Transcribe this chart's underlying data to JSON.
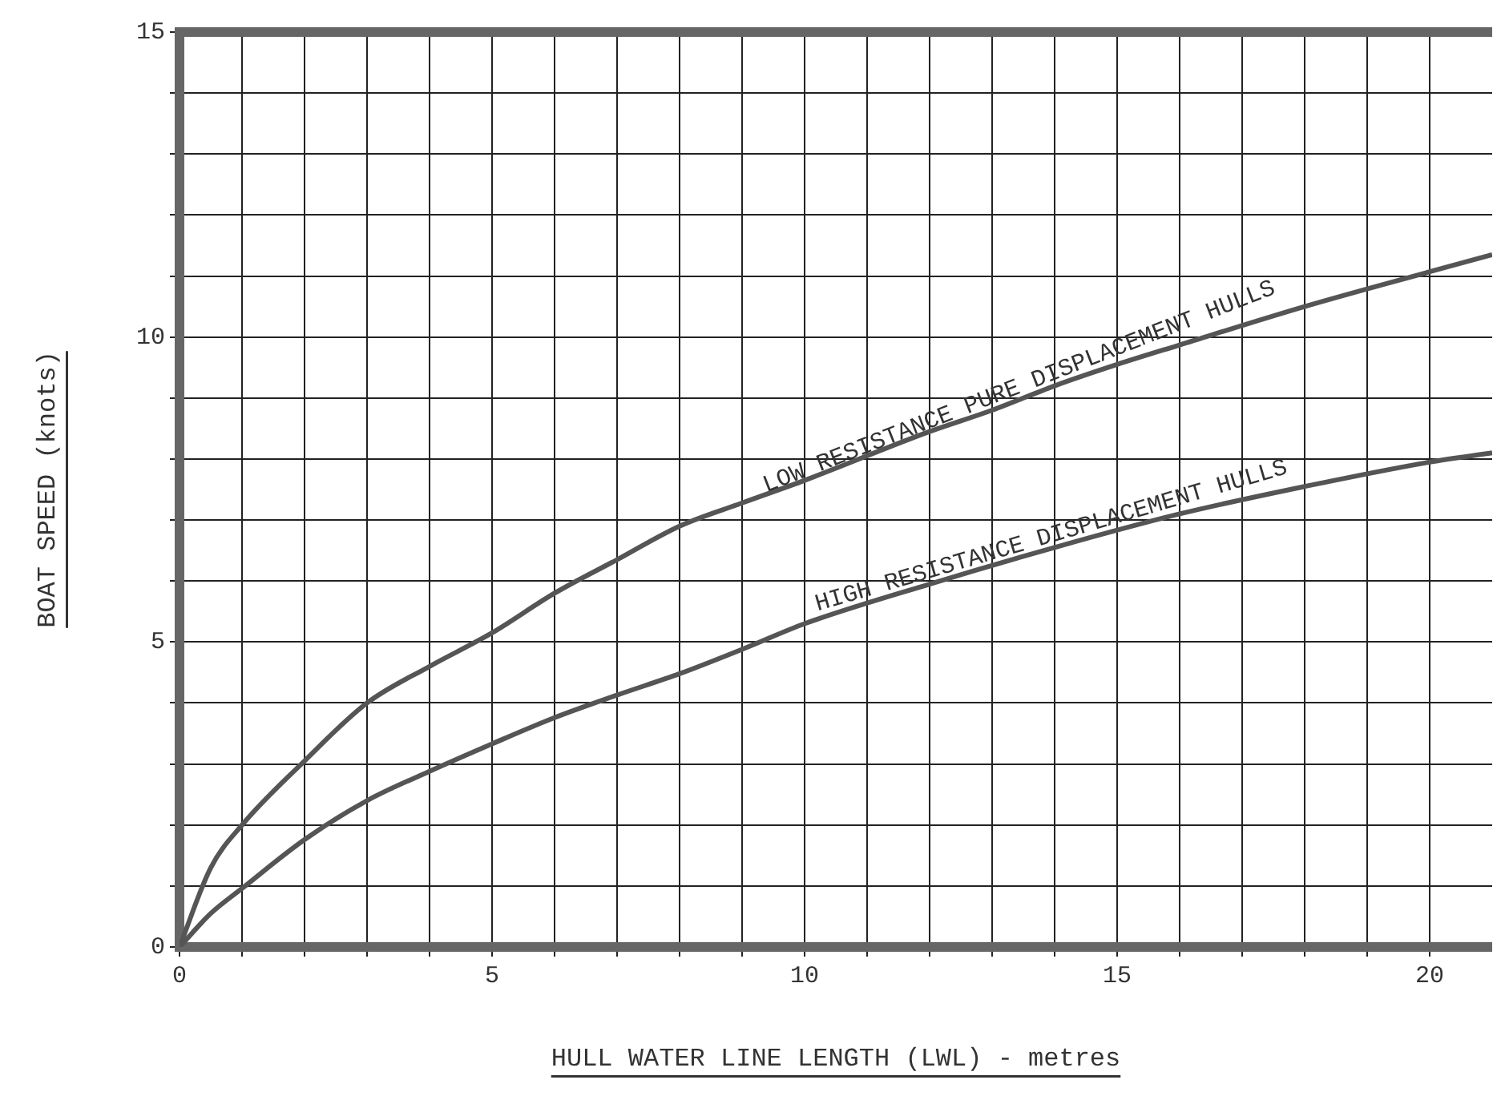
{
  "chart_data": {
    "type": "line",
    "xlabel": "HULL WATER LINE LENGTH (LWL) - metres",
    "ylabel": "BOAT SPEED (knots)",
    "xlim": [
      0,
      21
    ],
    "ylim": [
      0,
      15
    ],
    "xticks": [
      0,
      {
        "value": 1,
        "label": null
      },
      {
        "value": 2,
        "label": null
      },
      {
        "value": 3,
        "label": null
      },
      {
        "value": 4,
        "label": null
      },
      5,
      {
        "value": 6,
        "label": null
      },
      {
        "value": 7,
        "label": null
      },
      {
        "value": 8,
        "label": null
      },
      {
        "value": 9,
        "label": null
      },
      10,
      {
        "value": 11,
        "label": null
      },
      {
        "value": 12,
        "label": null
      },
      {
        "value": 13,
        "label": null
      },
      {
        "value": 14,
        "label": null
      },
      15,
      {
        "value": 16,
        "label": null
      },
      {
        "value": 17,
        "label": null
      },
      {
        "value": 18,
        "label": null
      },
      {
        "value": 19,
        "label": null
      },
      20
    ],
    "yticks": [
      0,
      {
        "value": 1,
        "label": null
      },
      {
        "value": 2,
        "label": null
      },
      {
        "value": 3,
        "label": null
      },
      {
        "value": 4,
        "label": null
      },
      5,
      {
        "value": 6,
        "label": null
      },
      {
        "value": 7,
        "label": null
      },
      {
        "value": 8,
        "label": null
      },
      {
        "value": 9,
        "label": null
      },
      10,
      {
        "value": 11,
        "label": null
      },
      {
        "value": 12,
        "label": null
      },
      {
        "value": 13,
        "label": null
      },
      {
        "value": 14,
        "label": null
      },
      15
    ],
    "grid": true,
    "legend": false,
    "marker": "none",
    "line_style": "solid",
    "series": [
      {
        "color": "#555555",
        "x": [
          0,
          0.5,
          1,
          2,
          3,
          4,
          5,
          6,
          7,
          8,
          9,
          10,
          12,
          13,
          14,
          15,
          16,
          18,
          20,
          21
        ],
        "values": [
          0,
          1.3,
          2.0,
          3.05,
          4.0,
          4.6,
          5.15,
          5.8,
          6.35,
          6.9,
          7.28,
          7.65,
          8.45,
          8.8,
          9.2,
          9.55,
          9.87,
          10.5,
          11.07,
          11.35
        ]
      },
      {
        "color": "#555555",
        "x": [
          0,
          0.5,
          1,
          2,
          3,
          4,
          5,
          6,
          7,
          8,
          9,
          10,
          12,
          14,
          16,
          18,
          20,
          21
        ],
        "values": [
          0,
          0.55,
          0.96,
          1.76,
          2.4,
          2.88,
          3.33,
          3.76,
          4.13,
          4.48,
          4.88,
          5.3,
          5.95,
          6.55,
          7.1,
          7.55,
          7.95,
          8.1
        ]
      }
    ],
    "annotations": [
      {
        "text": "LOW RESISTANCE PURE DISPLACEMENT HULLS",
        "x": 13.5,
        "y": 9.0
      },
      {
        "text": "HIGH RESISTANCE DISPLACEMENT HULLS",
        "x": 14,
        "y": 6.55
      }
    ]
  }
}
